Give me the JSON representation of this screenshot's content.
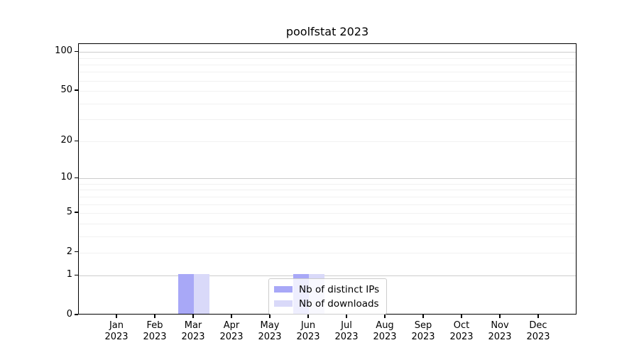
{
  "chart_data": {
    "type": "bar",
    "title": "poolfstat 2023",
    "categories": [
      "Jan",
      "Feb",
      "Mar",
      "Apr",
      "May",
      "Jun",
      "Jul",
      "Aug",
      "Sep",
      "Oct",
      "Nov",
      "Dec"
    ],
    "category_year": "2023",
    "series": [
      {
        "name": "Nb of distinct IPs",
        "color": "#a8a8f7",
        "values": [
          0,
          0,
          1,
          0,
          0,
          1,
          0,
          0,
          0,
          0,
          0,
          0
        ]
      },
      {
        "name": "Nb of downloads",
        "color": "#d9d9f9",
        "values": [
          0,
          0,
          1,
          0,
          0,
          1,
          0,
          0,
          0,
          0,
          0,
          0
        ]
      }
    ],
    "xlabel": "",
    "ylabel": "",
    "y_scale": "log1p",
    "ylim": [
      0,
      115
    ],
    "yticks": [
      0,
      1,
      2,
      5,
      10,
      20,
      50,
      100
    ],
    "major_gridlines": [
      1,
      10,
      100
    ],
    "minor_gridlines": [
      2,
      3,
      4,
      5,
      6,
      7,
      8,
      9,
      20,
      30,
      40,
      50,
      60,
      70,
      80,
      90
    ],
    "grid": "horizontal-only",
    "legend_position": "lower center"
  },
  "colors": {
    "background": "#ffffff",
    "spine": "#000000",
    "major_grid": "#cccccc",
    "minor_grid": "#f1f1f1",
    "text": "#000000"
  }
}
